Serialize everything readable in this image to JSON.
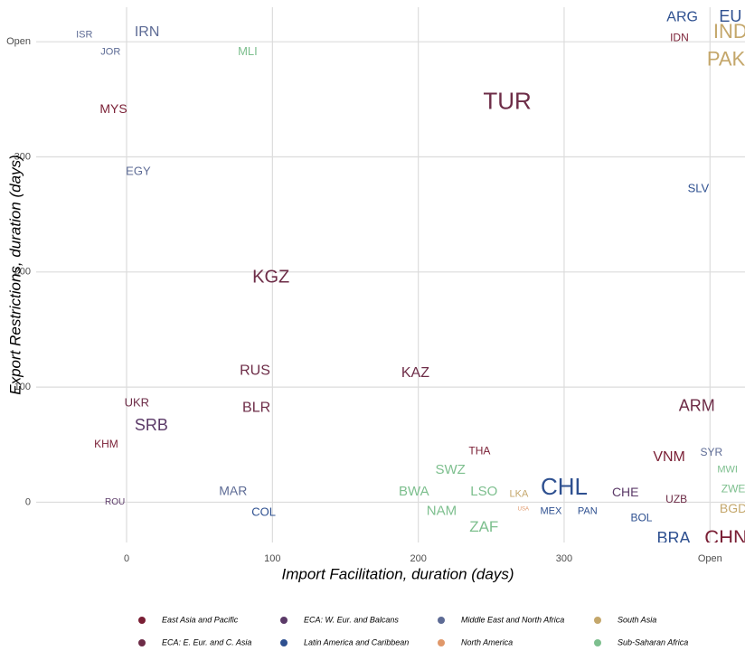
{
  "chart_data": {
    "type": "scatter",
    "x_label": "Import Facilitation, duration (days)",
    "y_label": "Export Restrictions, duration (days)",
    "xlim": [
      -62,
      424
    ],
    "ylim": [
      -35,
      430
    ],
    "xticks": [
      0,
      100,
      200,
      300,
      {
        "value": 400,
        "label": "Open"
      }
    ],
    "yticks": [
      0,
      100,
      200,
      300,
      {
        "value": 400,
        "label": "Open"
      }
    ],
    "grid": true,
    "legend": "bottom",
    "series": [
      {
        "name": "East Asia and Pacific",
        "color": "#7a1f35",
        "labels": [
          "MYS",
          "IDN",
          "VNM",
          "CHN",
          "KHM",
          "THA"
        ],
        "x": [
          -9,
          379,
          372,
          411,
          -14,
          242
        ],
        "values": [
          341,
          403,
          39,
          -32,
          50,
          44
        ],
        "sizes": [
          14,
          12,
          16,
          22,
          12,
          12
        ]
      },
      {
        "name": "ECA: W. Eur. and Balcans",
        "color": "#5b3a68",
        "labels": [
          "SRB",
          "ROU",
          "CHE"
        ],
        "x": [
          17,
          -8,
          342
        ],
        "values": [
          66,
          0,
          8
        ],
        "sizes": [
          18,
          10,
          14
        ]
      },
      {
        "name": "Middle East and North Africa",
        "color": "#5d6b95",
        "labels": [
          "ISR",
          "IRN",
          "JOR",
          "EGY",
          "MAR",
          "SYR"
        ],
        "x": [
          -29,
          14,
          -11,
          8,
          73,
          401
        ],
        "values": [
          406,
          408,
          391,
          287,
          9,
          43
        ],
        "sizes": [
          11,
          16,
          11,
          13,
          14,
          12
        ]
      },
      {
        "name": "South Asia",
        "color": "#c4a76b",
        "labels": [
          "IND",
          "PAK",
          "BGD",
          "LKA"
        ],
        "x": [
          414,
          411,
          416,
          269
        ],
        "values": [
          408,
          384,
          -6,
          7
        ],
        "sizes": [
          22,
          22,
          14,
          11
        ]
      },
      {
        "name": "ECA: E. Eur. and C. Asia",
        "color": "#6d2c47",
        "labels": [
          "TUR",
          "KGZ",
          "RUS",
          "BLR",
          "KAZ",
          "UKR",
          "ARM",
          "UZB"
        ],
        "x": [
          261,
          99,
          88,
          89,
          198,
          7,
          391,
          377
        ],
        "values": [
          347,
          195,
          114,
          82,
          112,
          86,
          83,
          2
        ],
        "sizes": [
          26,
          20,
          16,
          16,
          16,
          13,
          18,
          12
        ]
      },
      {
        "name": "Latin America and Caribbean",
        "color": "#2e5090",
        "labels": [
          "ARG",
          "EU",
          "SLV",
          "CHL",
          "BRA",
          "BOL",
          "COL",
          "MEX",
          "PAN"
        ],
        "x": [
          381,
          414,
          392,
          300,
          375,
          353,
          94,
          291,
          316
        ],
        "values": [
          421,
          421,
          272,
          12,
          -32,
          -14,
          -9,
          -8,
          -8
        ],
        "sizes": [
          16,
          18,
          13,
          26,
          18,
          12,
          13,
          11,
          11
        ]
      },
      {
        "name": "North America",
        "color": "#e0986a",
        "labels": [
          "USA"
        ],
        "x": [
          272
        ],
        "values": [
          -6
        ],
        "sizes": [
          6
        ]
      },
      {
        "name": "Sub-Saharan Africa",
        "color": "#7dbf8e",
        "labels": [
          "MLI",
          "SWZ",
          "BWA",
          "LSO",
          "NAM",
          "ZAF",
          "MWI",
          "ZWE"
        ],
        "x": [
          83,
          222,
          197,
          245,
          216,
          245,
          412,
          416
        ],
        "values": [
          391,
          28,
          9,
          9,
          -8,
          -22,
          28,
          11
        ],
        "sizes": [
          13,
          15,
          15,
          15,
          15,
          17,
          11,
          12
        ]
      }
    ]
  }
}
